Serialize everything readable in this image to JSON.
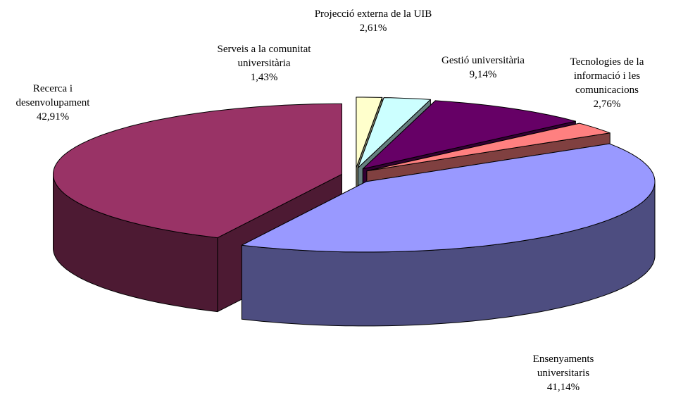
{
  "chart_data": {
    "type": "pie3d",
    "categories": [
      "Serveis a la comunitat universitària",
      "Projecció externa de la UIB",
      "Gestió universitària",
      "Tecnologies de la informació i les comunicacions",
      "Ensenyaments universitaris",
      "Recerca i desenvolupament"
    ],
    "values": [
      1.43,
      2.61,
      9.14,
      2.76,
      41.14,
      42.91
    ],
    "value_labels": [
      "1,43%",
      "2,61%",
      "9,14%",
      "2,76%",
      "41,14%",
      "42,91%"
    ],
    "colors": [
      "#ffffcc",
      "#ccffff",
      "#660066",
      "#ff8080",
      "#9999ff",
      "#993366"
    ]
  }
}
